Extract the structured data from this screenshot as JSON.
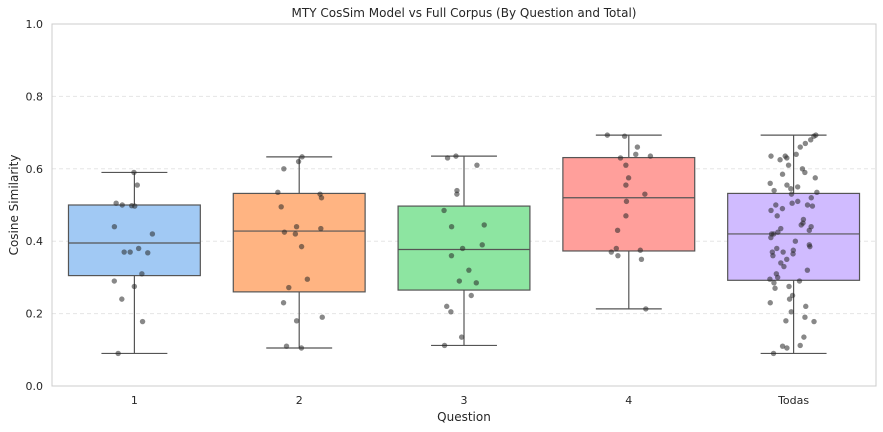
{
  "chart_data": {
    "type": "box",
    "title": "MTY CosSim Model  vs Full Corpus (By Question and Total)",
    "xlabel": "Question",
    "ylabel": "Cosine Similarity",
    "ylim": [
      0,
      1.0
    ],
    "yticks": [
      "0.0",
      "0.2",
      "0.4",
      "0.6",
      "0.8",
      "1.0"
    ],
    "grid": true,
    "categories": [
      "1",
      "2",
      "3",
      "4",
      "Todas"
    ],
    "colors": [
      "#a1c9f4",
      "#ffb482",
      "#8de5a1",
      "#ff9f9b",
      "#d0bbff"
    ],
    "boxes": [
      {
        "category": "1",
        "min": 0.09,
        "q1": 0.305,
        "median": 0.395,
        "q3": 0.5,
        "max": 0.59
      },
      {
        "category": "2",
        "min": 0.105,
        "q1": 0.26,
        "median": 0.428,
        "q3": 0.532,
        "max": 0.633
      },
      {
        "category": "3",
        "min": 0.112,
        "q1": 0.265,
        "median": 0.377,
        "q3": 0.497,
        "max": 0.635
      },
      {
        "category": "4",
        "min": 0.213,
        "q1": 0.373,
        "median": 0.52,
        "q3": 0.631,
        "max": 0.693
      },
      {
        "category": "Todas",
        "min": 0.09,
        "q1": 0.292,
        "median": 0.42,
        "q3": 0.532,
        "max": 0.693
      }
    ],
    "points": [
      [
        0.59,
        0.555,
        0.505,
        0.5,
        0.498,
        0.497,
        0.44,
        0.42,
        0.38,
        0.37,
        0.37,
        0.368,
        0.31,
        0.29,
        0.275,
        0.24,
        0.178,
        0.09
      ],
      [
        0.633,
        0.62,
        0.6,
        0.535,
        0.53,
        0.52,
        0.495,
        0.44,
        0.435,
        0.425,
        0.42,
        0.385,
        0.295,
        0.272,
        0.23,
        0.19,
        0.18,
        0.11,
        0.105
      ],
      [
        0.635,
        0.63,
        0.61,
        0.54,
        0.53,
        0.485,
        0.445,
        0.44,
        0.39,
        0.38,
        0.36,
        0.32,
        0.29,
        0.285,
        0.25,
        0.22,
        0.205,
        0.135,
        0.112
      ],
      [
        0.693,
        0.69,
        0.66,
        0.64,
        0.635,
        0.63,
        0.61,
        0.575,
        0.555,
        0.53,
        0.51,
        0.47,
        0.43,
        0.38,
        0.375,
        0.37,
        0.36,
        0.35,
        0.213
      ],
      [
        0.693,
        0.69,
        0.68,
        0.67,
        0.66,
        0.64,
        0.635,
        0.635,
        0.63,
        0.625,
        0.61,
        0.6,
        0.59,
        0.585,
        0.575,
        0.56,
        0.555,
        0.55,
        0.545,
        0.54,
        0.535,
        0.53,
        0.52,
        0.51,
        0.505,
        0.5,
        0.5,
        0.497,
        0.49,
        0.485,
        0.47,
        0.46,
        0.45,
        0.445,
        0.44,
        0.435,
        0.43,
        0.425,
        0.42,
        0.42,
        0.41,
        0.4,
        0.39,
        0.385,
        0.38,
        0.375,
        0.37,
        0.37,
        0.365,
        0.36,
        0.35,
        0.34,
        0.33,
        0.32,
        0.31,
        0.3,
        0.295,
        0.29,
        0.285,
        0.275,
        0.27,
        0.25,
        0.24,
        0.23,
        0.22,
        0.205,
        0.19,
        0.18,
        0.178,
        0.135,
        0.112,
        0.11,
        0.105,
        0.09
      ]
    ]
  }
}
